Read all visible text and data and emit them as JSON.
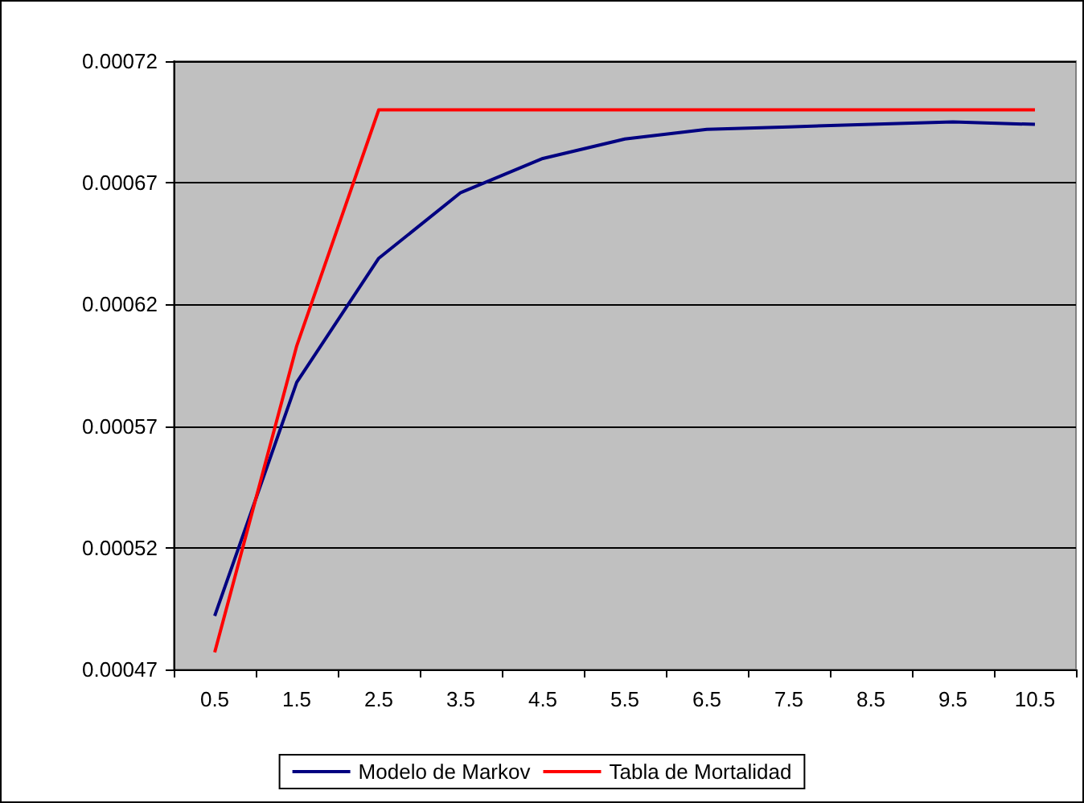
{
  "chart_data": {
    "type": "line",
    "categories": [
      "0.5",
      "1.5",
      "2.5",
      "3.5",
      "4.5",
      "5.5",
      "6.5",
      "7.5",
      "8.5",
      "9.5",
      "10.5"
    ],
    "series": [
      {
        "name": "Modelo de Markov",
        "color": "#000080",
        "values": [
          0.000492,
          0.000588,
          0.000639,
          0.000666,
          0.00068,
          0.000688,
          0.000692,
          0.000693,
          0.000694,
          0.000695,
          0.000694
        ]
      },
      {
        "name": "Tabla de Mortalidad",
        "color": "#ff0000",
        "values": [
          0.000477,
          0.000603,
          0.0007,
          0.0007,
          0.0007,
          0.0007,
          0.0007,
          0.0007,
          0.0007,
          0.0007,
          0.0007
        ]
      }
    ],
    "ylim": [
      0.00047,
      0.00072
    ],
    "yticks": [
      0.00047,
      0.00052,
      0.00057,
      0.00062,
      0.00067,
      0.00072
    ],
    "grid": "y",
    "legend": "bottom",
    "marker": "none",
    "line_style": "solid"
  }
}
